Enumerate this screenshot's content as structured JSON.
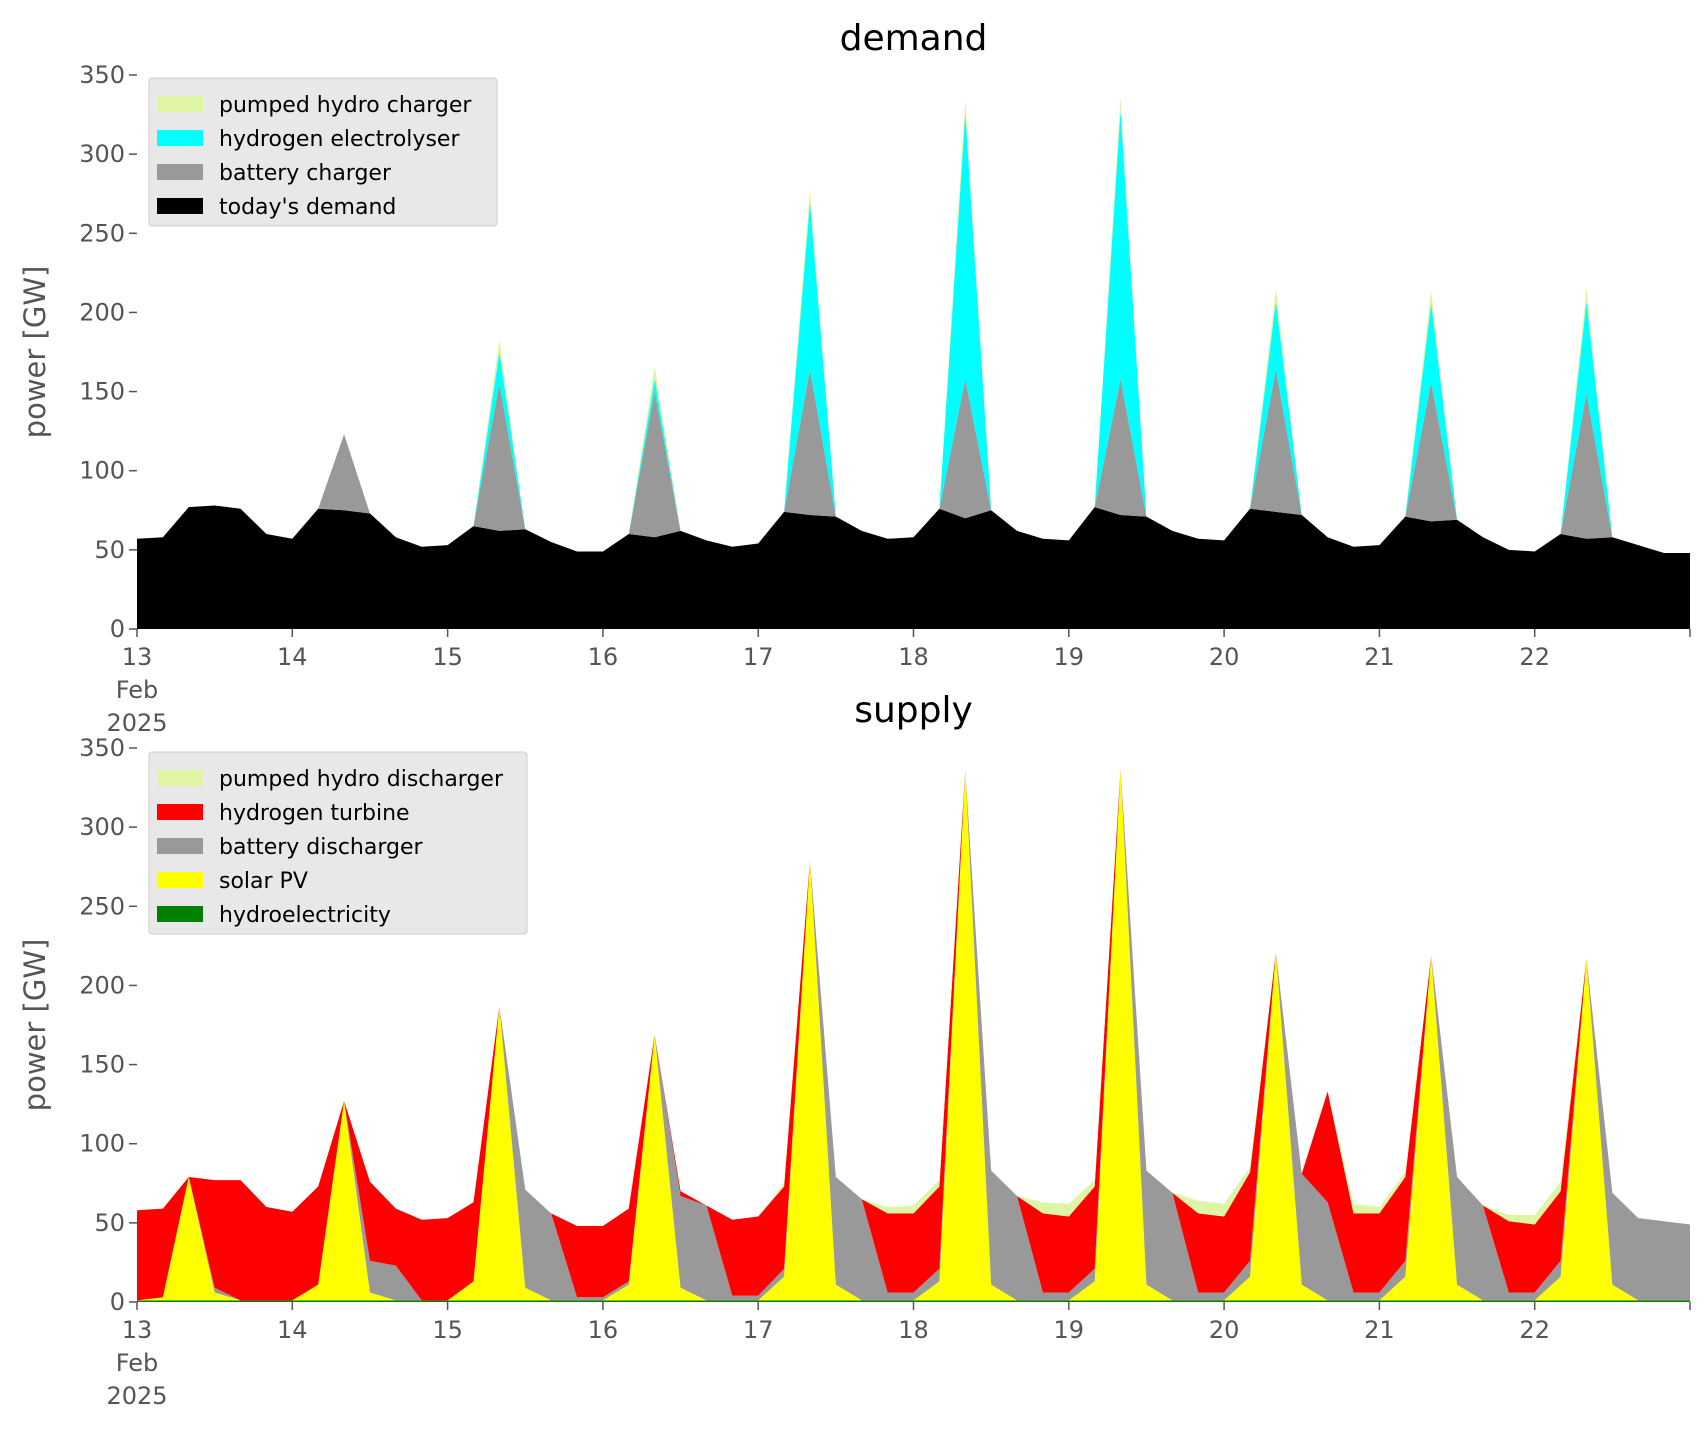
{
  "chart_data": [
    {
      "type": "area",
      "stacked": true,
      "title": "demand",
      "ylabel": "power [GW]",
      "xlabel": "",
      "ylim": [
        0,
        350
      ],
      "yticks": [
        0,
        50,
        100,
        150,
        200,
        250,
        300,
        350
      ],
      "x_ticks": [
        "13",
        "14",
        "15",
        "16",
        "17",
        "18",
        "19",
        "20",
        "21",
        "22"
      ],
      "x_tick_sublabel": [
        "Feb",
        "2025"
      ],
      "grid": false,
      "legend_position": "upper-left",
      "x": [
        "2025-02-13T00:00",
        "2025-02-13T04:00",
        "2025-02-13T08:00",
        "2025-02-13T12:00",
        "2025-02-13T16:00",
        "2025-02-13T20:00",
        "2025-02-14T00:00",
        "2025-02-14T04:00",
        "2025-02-14T08:00",
        "2025-02-14T12:00",
        "2025-02-14T16:00",
        "2025-02-14T20:00",
        "2025-02-15T00:00",
        "2025-02-15T04:00",
        "2025-02-15T08:00",
        "2025-02-15T12:00",
        "2025-02-15T16:00",
        "2025-02-15T20:00",
        "2025-02-16T00:00",
        "2025-02-16T04:00",
        "2025-02-16T08:00",
        "2025-02-16T12:00",
        "2025-02-16T16:00",
        "2025-02-16T20:00",
        "2025-02-17T00:00",
        "2025-02-17T04:00",
        "2025-02-17T08:00",
        "2025-02-17T12:00",
        "2025-02-17T16:00",
        "2025-02-17T20:00",
        "2025-02-18T00:00",
        "2025-02-18T04:00",
        "2025-02-18T08:00",
        "2025-02-18T12:00",
        "2025-02-18T16:00",
        "2025-02-18T20:00",
        "2025-02-19T00:00",
        "2025-02-19T04:00",
        "2025-02-19T08:00",
        "2025-02-19T12:00",
        "2025-02-19T16:00",
        "2025-02-19T20:00",
        "2025-02-20T00:00",
        "2025-02-20T04:00",
        "2025-02-20T08:00",
        "2025-02-20T12:00",
        "2025-02-20T16:00",
        "2025-02-20T20:00",
        "2025-02-21T00:00",
        "2025-02-21T04:00",
        "2025-02-21T08:00",
        "2025-02-21T12:00",
        "2025-02-21T16:00",
        "2025-02-21T20:00",
        "2025-02-22T00:00",
        "2025-02-22T04:00",
        "2025-02-22T08:00",
        "2025-02-22T12:00",
        "2025-02-22T16:00",
        "2025-02-22T20:00",
        "2025-02-23T00:00"
      ],
      "series": [
        {
          "name": "today's demand",
          "color": "#000000",
          "values": [
            57,
            58,
            77,
            78,
            76,
            60,
            57,
            76,
            75,
            73,
            58,
            52,
            53,
            65,
            62,
            63,
            55,
            49,
            49,
            60,
            58,
            62,
            56,
            52,
            54,
            74,
            72,
            71,
            62,
            57,
            58,
            76,
            70,
            75,
            62,
            57,
            56,
            77,
            72,
            71,
            62,
            57,
            56,
            76,
            74,
            72,
            58,
            52,
            53,
            71,
            68,
            69,
            58,
            50,
            49,
            60,
            57,
            58,
            53,
            48,
            48
          ]
        },
        {
          "name": "battery charger",
          "color": "#999999",
          "values": [
            0,
            0,
            0,
            0,
            0,
            0,
            0,
            0,
            48,
            0,
            0,
            0,
            0,
            0,
            93,
            0,
            0,
            0,
            0,
            0,
            92,
            0,
            0,
            0,
            0,
            0,
            92,
            0,
            0,
            0,
            0,
            0,
            88,
            0,
            0,
            0,
            0,
            0,
            86,
            0,
            0,
            0,
            0,
            0,
            90,
            0,
            0,
            0,
            0,
            0,
            88,
            0,
            0,
            0,
            0,
            0,
            92,
            0,
            0,
            0,
            0
          ]
        },
        {
          "name": "hydrogen electrolyser",
          "color": "#00ffff",
          "values": [
            0,
            0,
            0,
            0,
            0,
            0,
            0,
            0,
            0,
            0,
            0,
            0,
            0,
            0,
            20,
            0,
            0,
            0,
            0,
            0,
            8,
            0,
            0,
            0,
            0,
            0,
            106,
            0,
            0,
            0,
            0,
            0,
            168,
            0,
            0,
            0,
            0,
            0,
            170,
            0,
            0,
            0,
            0,
            0,
            43,
            0,
            0,
            0,
            0,
            0,
            50,
            0,
            0,
            0,
            0,
            0,
            58,
            0,
            0,
            0,
            0
          ]
        },
        {
          "name": "pumped hydro charger",
          "color": "#ddf5a5",
          "values": [
            0,
            0,
            0,
            0,
            0,
            0,
            0,
            0,
            0,
            0,
            0,
            0,
            0,
            0,
            8,
            0,
            0,
            0,
            0,
            0,
            8,
            0,
            0,
            0,
            0,
            0,
            8,
            0,
            0,
            0,
            0,
            0,
            8,
            0,
            0,
            0,
            0,
            0,
            8,
            0,
            0,
            0,
            0,
            0,
            8,
            0,
            0,
            0,
            0,
            0,
            8,
            0,
            0,
            0,
            0,
            0,
            8,
            0,
            0,
            0,
            0
          ]
        }
      ]
    },
    {
      "type": "area",
      "stacked": true,
      "title": "supply",
      "ylabel": "power [GW]",
      "xlabel": "",
      "ylim": [
        0,
        350
      ],
      "yticks": [
        0,
        50,
        100,
        150,
        200,
        250,
        300,
        350
      ],
      "x_ticks": [
        "13",
        "14",
        "15",
        "16",
        "17",
        "18",
        "19",
        "20",
        "21",
        "22"
      ],
      "x_tick_sublabel": [
        "Feb",
        "2025"
      ],
      "grid": false,
      "legend_position": "upper-left",
      "x": [
        "2025-02-13T00:00",
        "2025-02-13T04:00",
        "2025-02-13T08:00",
        "2025-02-13T12:00",
        "2025-02-13T16:00",
        "2025-02-13T20:00",
        "2025-02-14T00:00",
        "2025-02-14T04:00",
        "2025-02-14T08:00",
        "2025-02-14T12:00",
        "2025-02-14T16:00",
        "2025-02-14T20:00",
        "2025-02-15T00:00",
        "2025-02-15T04:00",
        "2025-02-15T08:00",
        "2025-02-15T12:00",
        "2025-02-15T16:00",
        "2025-02-15T20:00",
        "2025-02-16T00:00",
        "2025-02-16T04:00",
        "2025-02-16T08:00",
        "2025-02-16T12:00",
        "2025-02-16T16:00",
        "2025-02-16T20:00",
        "2025-02-17T00:00",
        "2025-02-17T04:00",
        "2025-02-17T08:00",
        "2025-02-17T12:00",
        "2025-02-17T16:00",
        "2025-02-17T20:00",
        "2025-02-18T00:00",
        "2025-02-18T04:00",
        "2025-02-18T08:00",
        "2025-02-18T12:00",
        "2025-02-18T16:00",
        "2025-02-18T20:00",
        "2025-02-19T00:00",
        "2025-02-19T04:00",
        "2025-02-19T08:00",
        "2025-02-19T12:00",
        "2025-02-19T16:00",
        "2025-02-19T20:00",
        "2025-02-20T00:00",
        "2025-02-20T04:00",
        "2025-02-20T08:00",
        "2025-02-20T12:00",
        "2025-02-20T16:00",
        "2025-02-20T20:00",
        "2025-02-21T00:00",
        "2025-02-21T04:00",
        "2025-02-21T08:00",
        "2025-02-21T12:00",
        "2025-02-21T16:00",
        "2025-02-21T20:00",
        "2025-02-22T00:00",
        "2025-02-22T04:00",
        "2025-02-22T08:00",
        "2025-02-22T12:00",
        "2025-02-22T16:00",
        "2025-02-22T20:00",
        "2025-02-23T00:00"
      ],
      "series": [
        {
          "name": "hydroelectricity",
          "color": "#008000",
          "values": [
            1,
            1,
            1,
            1,
            1,
            1,
            1,
            1,
            1,
            1,
            1,
            1,
            1,
            1,
            1,
            1,
            1,
            1,
            1,
            1,
            1,
            1,
            1,
            1,
            1,
            1,
            1,
            1,
            1,
            1,
            1,
            1,
            1,
            1,
            1,
            1,
            1,
            1,
            1,
            1,
            1,
            1,
            1,
            1,
            1,
            1,
            1,
            1,
            1,
            1,
            1,
            1,
            1,
            1,
            1,
            1,
            1,
            1,
            1,
            1,
            1
          ]
        },
        {
          "name": "solar PV",
          "color": "#ffff00",
          "values": [
            0,
            2,
            78,
            5,
            0,
            0,
            0,
            10,
            126,
            5,
            0,
            0,
            0,
            12,
            186,
            8,
            0,
            0,
            0,
            10,
            168,
            8,
            0,
            0,
            0,
            15,
            278,
            10,
            0,
            0,
            0,
            12,
            335,
            10,
            0,
            0,
            0,
            12,
            336,
            10,
            0,
            0,
            0,
            15,
            220,
            10,
            0,
            0,
            0,
            15,
            218,
            10,
            0,
            0,
            0,
            15,
            216,
            10,
            0,
            0,
            0
          ]
        },
        {
          "name": "battery discharger",
          "color": "#999999",
          "values": [
            0,
            0,
            0,
            3,
            0,
            0,
            0,
            0,
            0,
            20,
            22,
            0,
            0,
            0,
            0,
            62,
            55,
            2,
            2,
            2,
            0,
            58,
            60,
            3,
            3,
            5,
            0,
            68,
            64,
            5,
            5,
            8,
            0,
            72,
            66,
            5,
            5,
            8,
            0,
            72,
            68,
            5,
            5,
            10,
            0,
            70,
            62,
            5,
            5,
            10,
            0,
            68,
            60,
            5,
            5,
            10,
            0,
            58,
            52,
            50,
            48
          ]
        },
        {
          "name": "hydrogen turbine",
          "color": "#ff0000",
          "values": [
            57,
            56,
            0,
            68,
            76,
            59,
            56,
            62,
            0,
            50,
            36,
            51,
            52,
            50,
            0,
            0,
            0,
            45,
            45,
            46,
            0,
            3,
            0,
            48,
            50,
            52,
            0,
            0,
            0,
            50,
            50,
            52,
            0,
            0,
            0,
            50,
            48,
            52,
            0,
            0,
            0,
            50,
            48,
            56,
            0,
            0,
            70,
            50,
            50,
            53,
            0,
            0,
            0,
            45,
            43,
            44,
            0,
            0,
            0,
            0,
            0
          ]
        },
        {
          "name": "pumped hydro discharger",
          "color": "#ddf5a5",
          "values": [
            0,
            0,
            0,
            0,
            0,
            0,
            0,
            0,
            0,
            0,
            0,
            0,
            0,
            0,
            0,
            0,
            0,
            0,
            0,
            0,
            0,
            0,
            0,
            0,
            0,
            2,
            0,
            0,
            0,
            4,
            5,
            4,
            0,
            0,
            0,
            7,
            8,
            4,
            0,
            0,
            0,
            8,
            8,
            3,
            0,
            0,
            0,
            6,
            4,
            3,
            0,
            0,
            0,
            4,
            6,
            6,
            0,
            0,
            0,
            0,
            0
          ]
        }
      ]
    }
  ],
  "legends": {
    "demand": [
      "pumped hydro charger",
      "hydrogen electrolyser",
      "battery charger",
      "today's demand"
    ],
    "supply": [
      "pumped hydro discharger",
      "hydrogen turbine",
      "battery discharger",
      "solar PV",
      "hydroelectricity"
    ]
  }
}
